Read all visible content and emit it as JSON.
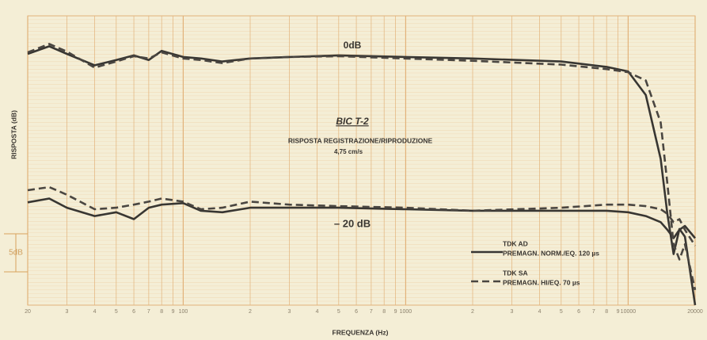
{
  "chart_data": {
    "type": "line",
    "title": "BIC T-2",
    "subtitle": "RISPOSTA REGISTRAZIONE/RIPRODUZIONE",
    "speed": "4,75 cm/s",
    "x_label": "FREQUENZA (Hz)",
    "y_label": "RISPOSTA (dB)",
    "log_x": true,
    "grid": true,
    "legend_position": "lower right",
    "annotations": [
      "0dB",
      "– 20 dB"
    ],
    "scale_bar": {
      "label": "5dB",
      "value": 5
    },
    "xlim": [
      20,
      20000
    ],
    "ylim": [
      -33,
      5
    ],
    "xticks": [
      20,
      {
        "value": 30,
        "label": "3"
      },
      {
        "value": 40,
        "label": "4"
      },
      {
        "value": 50,
        "label": "5"
      },
      {
        "value": 60,
        "label": "6"
      },
      {
        "value": 70,
        "label": "7"
      },
      {
        "value": 80,
        "label": "8"
      },
      {
        "value": 90,
        "label": "9"
      },
      100,
      {
        "value": 200,
        "label": "2"
      },
      {
        "value": 300,
        "label": "3"
      },
      {
        "value": 400,
        "label": "4"
      },
      {
        "value": 500,
        "label": "5"
      },
      {
        "value": 600,
        "label": "6"
      },
      {
        "value": 700,
        "label": "7"
      },
      {
        "value": 800,
        "label": "8"
      },
      {
        "value": 900,
        "label": "9"
      },
      1000,
      {
        "value": 2000,
        "label": "2"
      },
      {
        "value": 3000,
        "label": "3"
      },
      {
        "value": 4000,
        "label": "4"
      },
      {
        "value": 5000,
        "label": "5"
      },
      {
        "value": 6000,
        "label": "6"
      },
      {
        "value": 7000,
        "label": "7"
      },
      {
        "value": 8000,
        "label": "8"
      },
      {
        "value": 9000,
        "label": "9"
      },
      10000,
      20000
    ],
    "x": [
      20,
      25,
      30,
      40,
      50,
      60,
      70,
      80,
      100,
      120,
      150,
      200,
      300,
      500,
      1000,
      2000,
      5000,
      8000,
      10000,
      12000,
      14000,
      15000,
      16000,
      17000,
      18000,
      20000
    ],
    "series": [
      {
        "name": "TDK AD",
        "detail": "PREMAGN. NORM./EQ. 120 µs",
        "color": "#383632",
        "dash": "none",
        "curves": [
          {
            "values": [
              0,
              1,
              0,
              -1.5,
              -0.8,
              -0.2,
              -0.8,
              0.4,
              -0.4,
              -0.6,
              -1,
              -0.6,
              -0.4,
              -0.2,
              -0.4,
              -0.6,
              -1,
              -1.7,
              -2.3,
              -5.4,
              -13.8,
              -21,
              -26.3,
              -23,
              -24,
              -33
            ]
          },
          {
            "values": [
              -19.5,
              -19,
              -20.2,
              -21.3,
              -20.8,
              -21.7,
              -20.2,
              -19.8,
              -19.6,
              -20.6,
              -20.8,
              -20.2,
              -20.2,
              -20.2,
              -20.4,
              -20.6,
              -20.6,
              -20.6,
              -20.8,
              -21.3,
              -22.1,
              -23.1,
              -24.2,
              -23.1,
              -22.6,
              -24.2
            ]
          }
        ]
      },
      {
        "name": "TDK SA",
        "detail": "PREMAGN. HI/EQ. 70 µs",
        "color": "#4a4641",
        "dash": "9 5",
        "curves": [
          {
            "values": [
              0.2,
              1.3,
              0.3,
              -1.8,
              -1,
              -0.3,
              -0.6,
              0.2,
              -0.6,
              -0.8,
              -1.2,
              -0.6,
              -0.4,
              -0.3,
              -0.6,
              -0.9,
              -1.4,
              -2,
              -2.4,
              -3.5,
              -9,
              -17,
              -25,
              -27,
              -25,
              -31
            ]
          },
          {
            "values": [
              -17.9,
              -17.5,
              -18.5,
              -20.4,
              -20.2,
              -19.8,
              -19.4,
              -19,
              -19.4,
              -20.4,
              -20.2,
              -19.4,
              -19.8,
              -20,
              -20.2,
              -20.6,
              -20.2,
              -19.8,
              -19.8,
              -20,
              -20.4,
              -21,
              -22.1,
              -21.7,
              -23.1,
              -25.2
            ]
          }
        ]
      }
    ]
  }
}
